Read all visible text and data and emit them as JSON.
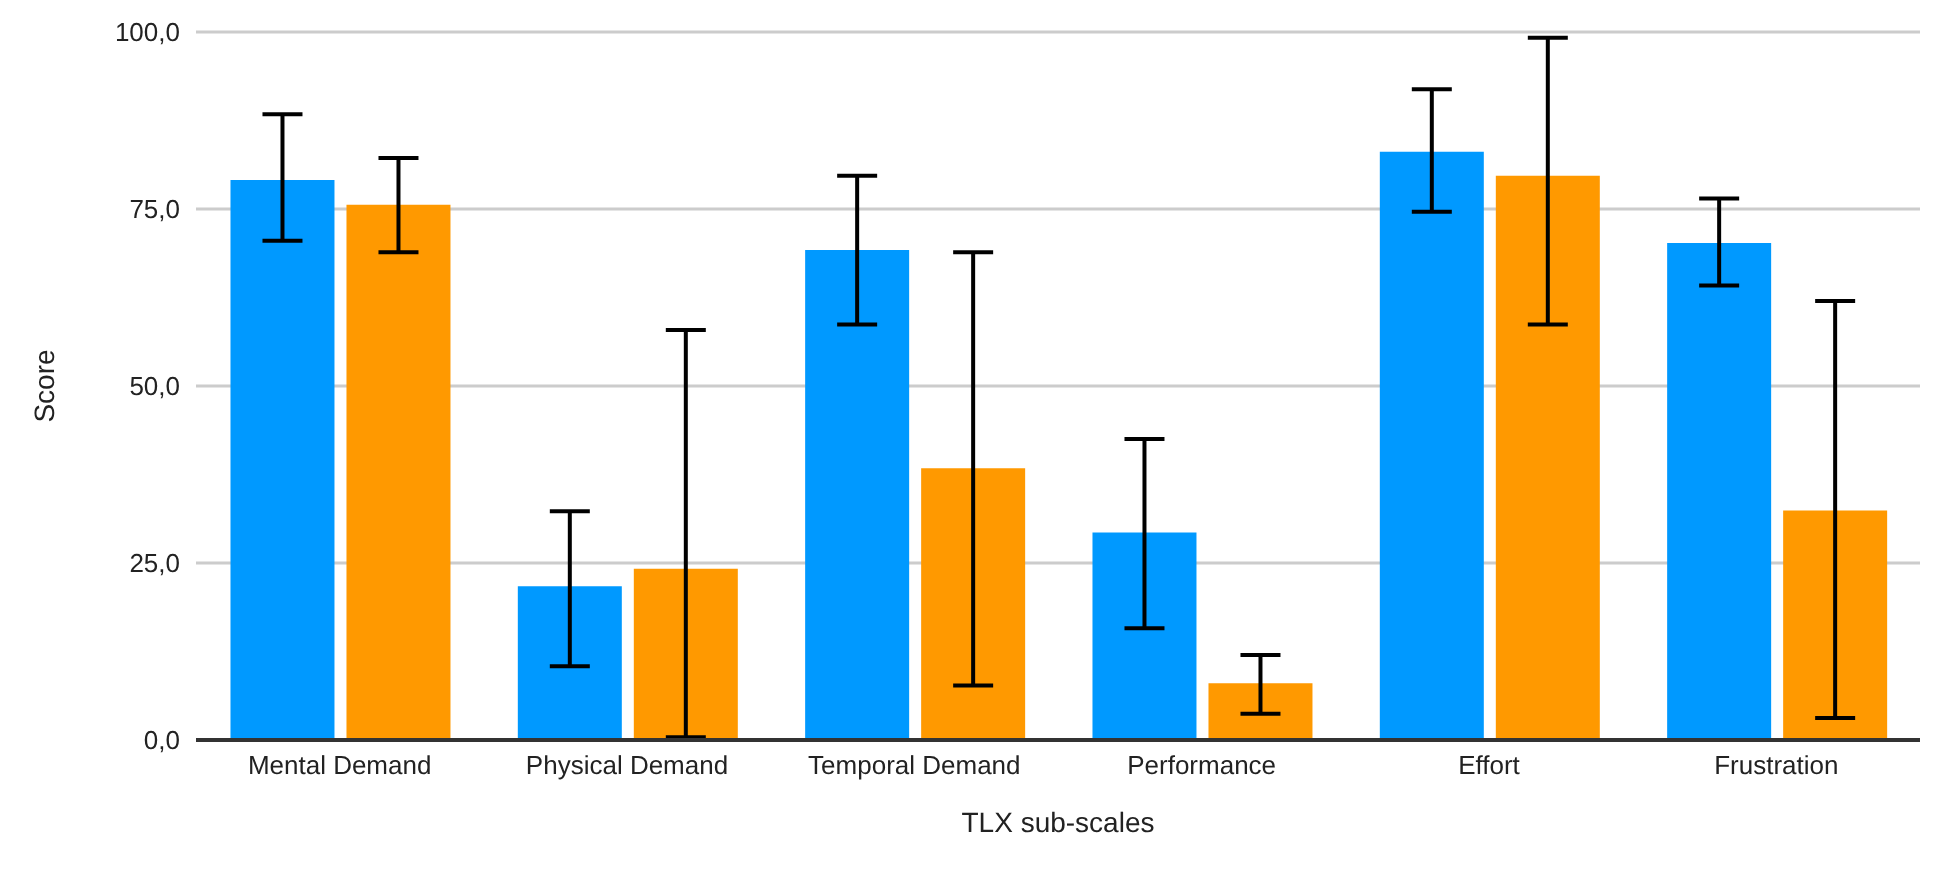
{
  "chart_data": {
    "type": "bar",
    "xlabel": "TLX sub-scales",
    "ylabel": "Score",
    "categories": [
      "Mental Demand",
      "Physical Demand",
      "Temporal Demand",
      "Performance",
      "Effort",
      "Frustration"
    ],
    "series": [
      {
        "color": "#0099ff",
        "values": [
          79.1,
          21.7,
          69.2,
          29.3,
          83.1,
          70.2
        ],
        "errors": [
          [
            70.5,
            88.4
          ],
          [
            10.4,
            32.3
          ],
          [
            58.7,
            79.7
          ],
          [
            15.8,
            42.5
          ],
          [
            74.6,
            91.9
          ],
          [
            64.2,
            76.5
          ]
        ]
      },
      {
        "color": "#ff9900",
        "values": [
          75.6,
          24.2,
          38.4,
          8.0,
          79.7,
          32.4
        ],
        "errors": [
          [
            68.9,
            82.2
          ],
          [
            0.4,
            57.9
          ],
          [
            7.7,
            68.9
          ],
          [
            3.7,
            12.0
          ],
          [
            58.7,
            99.2
          ],
          [
            3.1,
            62.0
          ]
        ]
      }
    ],
    "ylim": [
      0,
      100
    ],
    "yticks": [
      {
        "value": 0,
        "label": "0,0"
      },
      {
        "value": 25,
        "label": "25,0"
      },
      {
        "value": 50,
        "label": "50,0"
      },
      {
        "value": 75,
        "label": "75,0"
      },
      {
        "value": 100,
        "label": "100,0"
      }
    ],
    "grid": "y",
    "legend": false
  }
}
